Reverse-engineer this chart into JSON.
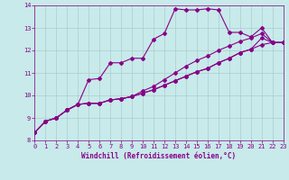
{
  "background_color": "#c8eaea",
  "grid_color": "#aacccc",
  "line_color": "#880088",
  "marker": "D",
  "marker_size": 2,
  "linewidth": 0.8,
  "xlim": [
    0,
    23
  ],
  "ylim": [
    8,
    14
  ],
  "xlabel": "Windchill (Refroidissement éolien,°C)",
  "xticks": [
    0,
    1,
    2,
    3,
    4,
    5,
    6,
    7,
    8,
    9,
    10,
    11,
    12,
    13,
    14,
    15,
    16,
    17,
    18,
    19,
    20,
    21,
    22,
    23
  ],
  "yticks": [
    8,
    9,
    10,
    11,
    12,
    13,
    14
  ],
  "line1_x": [
    0,
    1,
    2,
    3,
    4,
    5,
    6,
    7,
    8,
    9,
    10,
    11,
    12,
    13,
    14,
    15,
    16,
    17,
    18,
    19,
    20,
    21,
    22,
    23
  ],
  "line1_y": [
    8.35,
    8.85,
    9.0,
    9.35,
    9.6,
    10.7,
    10.75,
    11.45,
    11.45,
    11.65,
    11.65,
    12.5,
    12.75,
    13.85,
    13.8,
    13.8,
    13.85,
    13.8,
    12.8,
    12.8,
    12.6,
    13.0,
    12.35,
    12.35
  ],
  "line2_x": [
    0,
    1,
    2,
    3,
    4,
    5,
    6,
    7,
    8,
    9,
    10,
    11,
    12,
    13,
    14,
    15,
    16,
    17,
    18,
    19,
    20,
    21,
    22,
    23
  ],
  "line2_y": [
    8.35,
    8.85,
    9.0,
    9.35,
    9.6,
    9.65,
    9.65,
    9.8,
    9.85,
    9.95,
    10.1,
    10.25,
    10.45,
    10.65,
    10.85,
    11.05,
    11.2,
    11.45,
    11.65,
    11.9,
    12.05,
    12.25,
    12.35,
    12.35
  ],
  "line3_x": [
    0,
    1,
    2,
    3,
    4,
    5,
    6,
    7,
    8,
    9,
    10,
    11,
    12,
    13,
    14,
    15,
    16,
    17,
    18,
    19,
    20,
    21,
    22,
    23
  ],
  "line3_y": [
    8.35,
    8.85,
    9.0,
    9.35,
    9.6,
    9.65,
    9.65,
    9.8,
    9.85,
    9.95,
    10.2,
    10.4,
    10.7,
    11.0,
    11.3,
    11.55,
    11.75,
    12.0,
    12.2,
    12.4,
    12.55,
    12.75,
    12.35,
    12.35
  ],
  "line4_x": [
    0,
    1,
    2,
    3,
    4,
    5,
    6,
    7,
    8,
    9,
    10,
    11,
    12,
    13,
    14,
    15,
    16,
    17,
    18,
    19,
    20,
    21,
    22,
    23
  ],
  "line4_y": [
    8.35,
    8.85,
    9.0,
    9.35,
    9.6,
    9.65,
    9.65,
    9.8,
    9.85,
    9.95,
    10.1,
    10.25,
    10.45,
    10.65,
    10.85,
    11.05,
    11.2,
    11.45,
    11.65,
    11.9,
    12.05,
    12.55,
    12.35,
    12.35
  ],
  "tick_fontsize": 5,
  "xlabel_fontsize": 5.5
}
